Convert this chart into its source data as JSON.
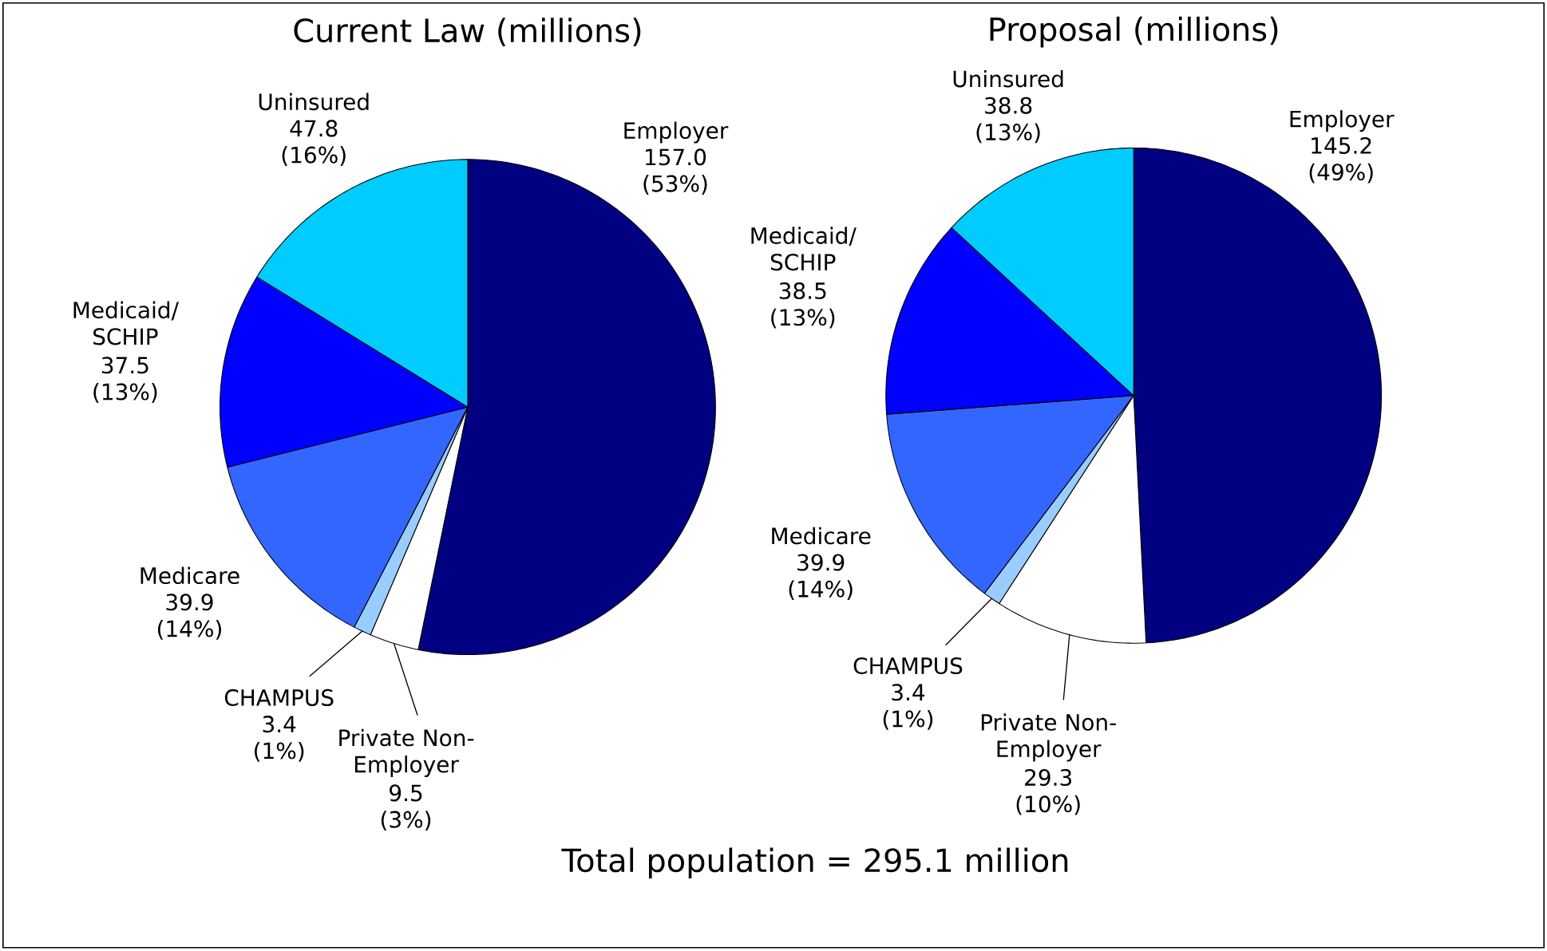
{
  "chart_data": [
    {
      "type": "pie",
      "title": "Current Law (millions)",
      "categories": [
        "Employer",
        "Private Non-Employer",
        "CHAMPUS",
        "Medicare",
        "Medicaid/ SCHIP",
        "Uninsured"
      ],
      "values": [
        157.0,
        9.5,
        3.4,
        39.9,
        37.5,
        47.8
      ],
      "colors": [
        "#000080",
        "#ffffff",
        "#99ccff",
        "#3366ff",
        "#0000ff",
        "#00ccff"
      ],
      "value_labels": [
        "157.0 (53%)",
        "9.5 (3%)",
        "3.4 (1%)",
        "39.9 (14%)",
        "37.5 (13%)",
        "47.8 (16%)"
      ]
    },
    {
      "type": "pie",
      "title": "Proposal (millions)",
      "categories": [
        "Employer",
        "Private Non-Employer",
        "CHAMPUS",
        "Medicare",
        "Medicaid/ SCHIP",
        "Uninsured"
      ],
      "values": [
        145.2,
        29.3,
        3.4,
        39.9,
        38.5,
        38.8
      ],
      "colors": [
        "#000080",
        "#ffffff",
        "#99ccff",
        "#3366ff",
        "#0000ff",
        "#00ccff"
      ],
      "value_labels": [
        "145.2 (49%)",
        "29.3 (10%)",
        "3.4 (1%)",
        "39.9 (14%)",
        "38.5 (13%)",
        "38.8 (13%)"
      ],
      "annotations": [
        "Total population = 295.1 million"
      ]
    }
  ]
}
